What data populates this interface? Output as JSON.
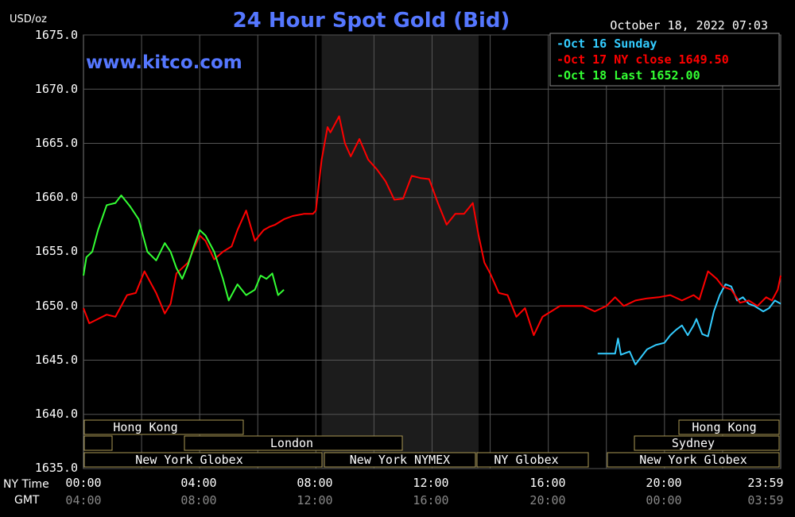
{
  "header": {
    "title": "24 Hour Spot Gold (Bid)",
    "unit": "USD/oz",
    "date": "October 18, 2022 07:03",
    "watermark": "www.kitco.com"
  },
  "legend": [
    {
      "text": "-Oct 16 Sunday",
      "color": "#33ccff"
    },
    {
      "text": "-Oct 17 NY close 1649.50",
      "color": "#ff0000"
    },
    {
      "text": "-Oct 18 Last 1652.00",
      "color": "#33ff33"
    }
  ],
  "axis": {
    "y_ticks": [
      "1675.0",
      "1670.0",
      "1665.0",
      "1660.0",
      "1655.0",
      "1650.0",
      "1645.0",
      "1640.0",
      "1635.0"
    ],
    "ny_label": "NY Time",
    "gmt_label": "GMT",
    "ny_ticks": [
      "00:00",
      "04:00",
      "08:00",
      "12:00",
      "16:00",
      "20:00",
      "23:59"
    ],
    "gmt_ticks": [
      "04:00",
      "08:00",
      "12:00",
      "16:00",
      "20:00",
      "00:00",
      "03:59"
    ]
  },
  "sessions": {
    "hong_kong_1": "Hong Kong",
    "london": "London",
    "ny_globex_1": "New York Globex",
    "ny_nymex": "New York NYMEX",
    "ny_globex_2": "NY Globex",
    "hong_kong_2": "Hong Kong",
    "sydney": "Sydney",
    "ny_globex_3": "New York Globex"
  },
  "chart_data": {
    "type": "line",
    "title": "24 Hour Spot Gold (Bid)",
    "ylabel": "USD/oz",
    "ylim": [
      1635,
      1675
    ],
    "x_unit": "hours (NY time)",
    "xlim": [
      0,
      24
    ],
    "shaded_region_hours": [
      8.2,
      13.6
    ],
    "series": [
      {
        "name": "Oct 16 Sunday",
        "color": "#33ccff",
        "x": [
          17.7,
          18.3,
          18.4,
          18.5,
          18.8,
          19.0,
          19.2,
          19.4,
          19.7,
          20.0,
          20.2,
          20.4,
          20.6,
          20.8,
          21.0,
          21.1,
          21.3,
          21.5,
          21.7,
          21.9,
          22.1,
          22.3,
          22.5,
          22.7,
          22.9,
          23.1,
          23.4,
          23.6,
          23.8,
          24.0
        ],
        "y": [
          1645.6,
          1645.6,
          1647.0,
          1645.5,
          1645.8,
          1644.6,
          1645.3,
          1646.0,
          1646.4,
          1646.6,
          1647.3,
          1647.8,
          1648.2,
          1647.3,
          1648.2,
          1648.8,
          1647.4,
          1647.2,
          1649.5,
          1651.0,
          1652.0,
          1651.8,
          1650.5,
          1650.8,
          1650.2,
          1650.0,
          1649.5,
          1649.8,
          1650.5,
          1650.2
        ]
      },
      {
        "name": "Oct 17 NY close 1649.50",
        "color": "#ff0000",
        "x": [
          0.0,
          0.2,
          0.5,
          0.8,
          1.1,
          1.5,
          1.8,
          2.1,
          2.5,
          2.8,
          3.0,
          3.2,
          3.6,
          4.0,
          4.2,
          4.5,
          4.8,
          5.1,
          5.3,
          5.6,
          5.9,
          6.2,
          6.4,
          6.6,
          6.9,
          7.2,
          7.6,
          7.9,
          8.0,
          8.2,
          8.4,
          8.5,
          8.8,
          9.0,
          9.2,
          9.5,
          9.8,
          10.1,
          10.4,
          10.7,
          11.0,
          11.3,
          11.6,
          11.9,
          12.2,
          12.5,
          12.8,
          13.1,
          13.4,
          13.6,
          13.8,
          14.0,
          14.3,
          14.6,
          14.9,
          15.2,
          15.5,
          15.8,
          16.1,
          16.4,
          16.8,
          17.2,
          17.6,
          18.0,
          18.3,
          18.6,
          19.0,
          19.4,
          19.8,
          20.2,
          20.6,
          21.0,
          21.2,
          21.5,
          21.8,
          22.0,
          22.3,
          22.6,
          22.9,
          23.2,
          23.5,
          23.7,
          23.9,
          24.0
        ],
        "y": [
          1649.8,
          1648.4,
          1648.8,
          1649.2,
          1649.0,
          1651.0,
          1651.2,
          1653.2,
          1651.2,
          1649.3,
          1650.2,
          1653.0,
          1654.0,
          1656.5,
          1656.0,
          1654.3,
          1655.0,
          1655.5,
          1657.0,
          1658.8,
          1656.0,
          1657.0,
          1657.3,
          1657.5,
          1658.0,
          1658.3,
          1658.5,
          1658.5,
          1658.8,
          1663.5,
          1666.5,
          1666.0,
          1667.5,
          1665.0,
          1663.8,
          1665.4,
          1663.5,
          1662.6,
          1661.5,
          1659.8,
          1659.9,
          1662.0,
          1661.8,
          1661.7,
          1659.5,
          1657.5,
          1658.5,
          1658.5,
          1659.5,
          1656.5,
          1654.0,
          1653.0,
          1651.2,
          1651.0,
          1649.0,
          1649.8,
          1647.3,
          1649.0,
          1649.5,
          1650.0,
          1650.0,
          1650.0,
          1649.5,
          1650.0,
          1650.8,
          1650.0,
          1650.5,
          1650.7,
          1650.8,
          1651.0,
          1650.5,
          1651.0,
          1650.6,
          1653.2,
          1652.5,
          1651.8,
          1651.5,
          1650.3,
          1650.5,
          1650.0,
          1650.8,
          1650.5,
          1651.5,
          1652.8
        ]
      },
      {
        "name": "Oct 18 Last 1652.00",
        "color": "#33ff33",
        "x": [
          0.0,
          0.1,
          0.3,
          0.5,
          0.8,
          1.1,
          1.3,
          1.6,
          1.9,
          2.2,
          2.5,
          2.8,
          3.0,
          3.2,
          3.4,
          3.6,
          3.8,
          4.0,
          4.2,
          4.5,
          4.8,
          5.0,
          5.3,
          5.6,
          5.9,
          6.1,
          6.3,
          6.5,
          6.7,
          6.9
        ],
        "y": [
          1652.8,
          1654.5,
          1655.0,
          1657.0,
          1659.3,
          1659.5,
          1660.2,
          1659.2,
          1658.0,
          1655.0,
          1654.2,
          1655.8,
          1655.0,
          1653.5,
          1652.5,
          1653.8,
          1655.5,
          1657.0,
          1656.5,
          1655.0,
          1652.5,
          1650.5,
          1652.0,
          1651.0,
          1651.5,
          1652.8,
          1652.5,
          1653.0,
          1651.0,
          1651.5
        ]
      }
    ]
  }
}
